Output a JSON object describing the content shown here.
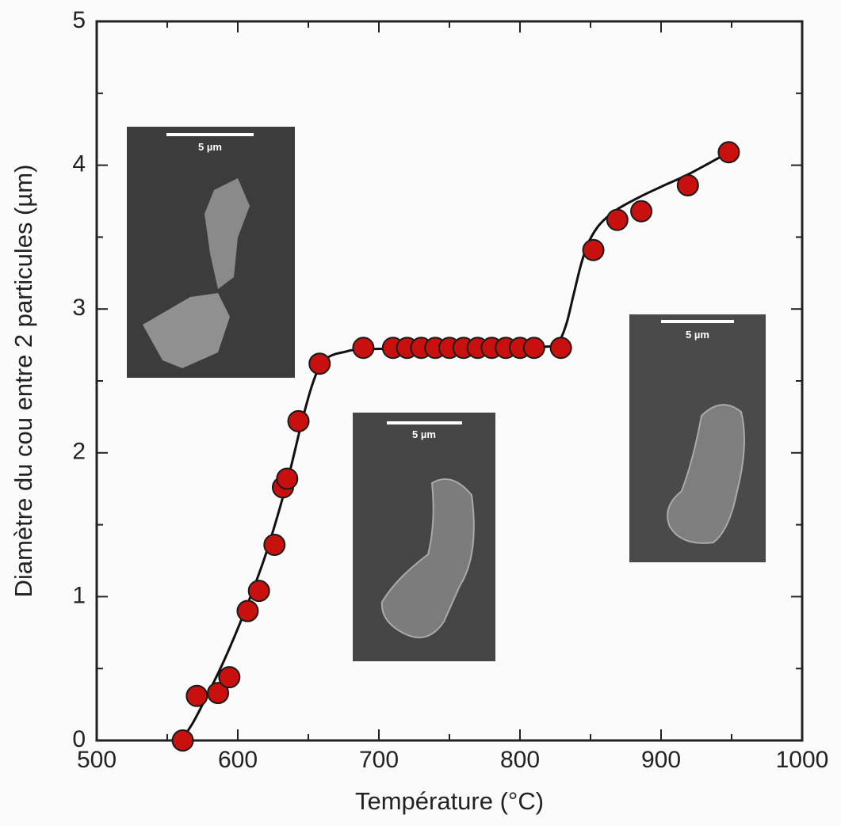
{
  "chart_data": {
    "type": "scatter",
    "xlabel": "Température (°C)",
    "ylabel": "Diamètre du cou entre 2 particules (µm)",
    "xlim": [
      500,
      1000
    ],
    "ylim": [
      0,
      5
    ],
    "xticks": [
      500,
      600,
      700,
      800,
      900,
      1000
    ],
    "yticks": [
      0,
      1,
      2,
      3,
      4,
      5
    ],
    "xminor_ticks": [
      550,
      650,
      750,
      850,
      950
    ],
    "yminor_ticks": [
      0.5,
      1.5,
      2.5,
      3.5,
      4.5
    ],
    "series": [
      {
        "kind": "points",
        "color": "#c8100f",
        "x": [
          561,
          571,
          586,
          594,
          607,
          615,
          626,
          632,
          635,
          643,
          658,
          689,
          710,
          720,
          730,
          740,
          750,
          760,
          770,
          780,
          790,
          800,
          810,
          829,
          852,
          869,
          886,
          919,
          948
        ],
        "values": [
          0,
          0.31,
          0.33,
          0.44,
          0.9,
          1.04,
          1.36,
          1.76,
          1.82,
          2.22,
          2.62,
          2.73,
          2.73,
          2.73,
          2.73,
          2.73,
          2.73,
          2.73,
          2.73,
          2.73,
          2.73,
          2.73,
          2.73,
          2.73,
          3.41,
          3.62,
          3.68,
          3.86,
          4.09
        ]
      },
      {
        "kind": "line",
        "color": "#111111",
        "x": [
          560,
          568,
          575,
          590,
          605,
          620,
          635,
          645,
          652,
          658,
          665,
          675,
          690,
          750,
          822,
          828,
          833,
          838,
          843,
          848,
          855,
          863,
          870,
          885,
          900,
          920,
          948
        ],
        "values": [
          0,
          0.12,
          0.25,
          0.55,
          0.9,
          1.3,
          1.8,
          2.2,
          2.45,
          2.6,
          2.67,
          2.7,
          2.72,
          2.73,
          2.74,
          2.78,
          2.9,
          3.1,
          3.3,
          3.45,
          3.57,
          3.65,
          3.7,
          3.78,
          3.85,
          3.94,
          4.09
        ]
      }
    ],
    "insets": [
      {
        "scale_label": "5 µm"
      },
      {
        "scale_label": "5 µm"
      },
      {
        "scale_label": "5 µm"
      }
    ]
  }
}
